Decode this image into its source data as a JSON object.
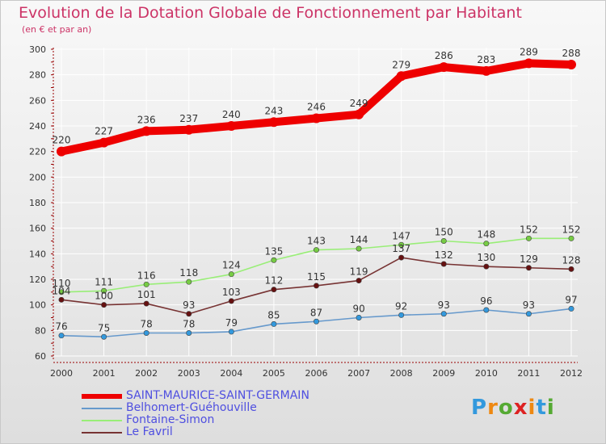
{
  "title": "Evolution de la Dotation Globale de Fonctionnement par Habitant",
  "subtitle": "(en € et par an)",
  "logo_text": "Proxiti",
  "colors": {
    "title": "#cc3366",
    "legend_text": "#4f4fe0",
    "axis": "#990000",
    "grid": "#ffffff"
  },
  "chart_data": {
    "type": "line",
    "title": "Evolution de la Dotation Globale de Fonctionnement par Habitant",
    "subtitle": "(en € et par an)",
    "x": [
      "2000",
      "2001",
      "2002",
      "2003",
      "2004",
      "2005",
      "2006",
      "2007",
      "2008",
      "2009",
      "2010",
      "2011",
      "2012"
    ],
    "ylim": [
      60,
      300
    ],
    "yticks": [
      60,
      80,
      100,
      120,
      140,
      160,
      180,
      200,
      220,
      240,
      260,
      280,
      300
    ],
    "grid": true,
    "legend_position": "bottom-left",
    "series": [
      {
        "name": "SAINT-MAURICE-SAINT-GERMAIN",
        "color": "#ee0000",
        "thick": true,
        "values": [
          220,
          227,
          236,
          237,
          240,
          243,
          246,
          249,
          279,
          286,
          283,
          289,
          288
        ]
      },
      {
        "name": "Belhomert-Guéhouville",
        "color": "#6699cc",
        "marker": "#3399dd",
        "values": [
          76,
          75,
          78,
          78,
          79,
          85,
          87,
          90,
          92,
          93,
          96,
          93,
          97
        ]
      },
      {
        "name": "Fontaine-Simon",
        "color": "#99ee77",
        "marker": "#77cc44",
        "values": [
          110,
          111,
          116,
          118,
          124,
          135,
          143,
          144,
          147,
          150,
          148,
          152,
          152
        ]
      },
      {
        "name": "Le Favril",
        "color": "#773333",
        "marker": "#661111",
        "values": [
          104,
          100,
          101,
          93,
          103,
          112,
          115,
          119,
          137,
          132,
          130,
          129,
          128
        ]
      }
    ]
  }
}
